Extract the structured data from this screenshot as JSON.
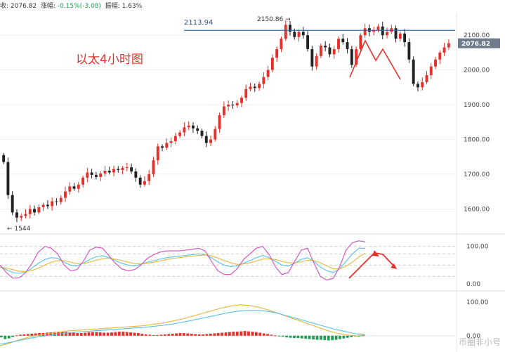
{
  "header": {
    "close_label": "收",
    "close_value": "2076.82",
    "change_label": "涨幅",
    "change_value": "-0.15%(-3.08)",
    "amp_label": "振幅",
    "amp_value": "1.63%"
  },
  "annotation_title": "以太4小时图",
  "watermark": "币圈非小号",
  "colors": {
    "up": "#e8302a",
    "down": "#222222",
    "resistance": "#2b6cb0",
    "arrow": "#e8302a",
    "kdj_k": "#56c2e6",
    "kdj_d": "#e6b63a",
    "kdj_j": "#d04cc0",
    "macd_pos": "#e8302a",
    "macd_neg": "#1f9d55",
    "dif": "#e6b63a",
    "dea": "#56c2e6"
  },
  "chart_data": [
    {
      "type": "candlestick",
      "y_ticks": [
        "2100.00",
        "2000.00",
        "1900.00",
        "1800.00",
        "1700.00",
        "1600.00"
      ],
      "ylim": [
        1530,
        2165
      ],
      "current_price": "2076.82",
      "resistance_level": 2113.94,
      "annotations": [
        {
          "text": "2113.94",
          "value": 2113.94
        },
        {
          "text": "2150.86",
          "value": 2150.86
        },
        {
          "text": "1544",
          "value": 1544
        }
      ],
      "ohlc_close": [
        1735,
        1640,
        1590,
        1575,
        1580,
        1585,
        1600,
        1590,
        1605,
        1612,
        1608,
        1622,
        1620,
        1632,
        1650,
        1665,
        1658,
        1670,
        1690,
        1705,
        1698,
        1692,
        1702,
        1710,
        1705,
        1715,
        1712,
        1718,
        1720,
        1708,
        1690,
        1670,
        1680,
        1700,
        1740,
        1780,
        1776,
        1790,
        1795,
        1810,
        1820,
        1835,
        1840,
        1832,
        1825,
        1810,
        1790,
        1800,
        1830,
        1870,
        1895,
        1900,
        1898,
        1905,
        1920,
        1945,
        1952,
        1948,
        1960,
        1980,
        2000,
        2035,
        2060,
        2090,
        2130,
        2110,
        2095,
        2110,
        2100,
        2060,
        2010,
        2040,
        2070,
        2065,
        2045,
        2060,
        2090,
        2080,
        2060,
        2015,
        2060,
        2100,
        2120,
        2110,
        2115,
        2125,
        2100,
        2110,
        2120,
        2090,
        2105,
        2080,
        2030,
        1960,
        1950,
        1965,
        1985,
        2010,
        2030,
        2050,
        2065,
        2077
      ]
    },
    {
      "type": "line",
      "name": "KDJ",
      "y_ticks": [
        "100.00",
        "0.00"
      ],
      "ylim": [
        -15,
        120
      ],
      "series": [
        {
          "key": "k",
          "values": [
            45,
            38,
            30,
            28,
            32,
            42,
            55,
            65,
            70,
            68,
            58,
            50,
            48,
            55,
            65,
            72,
            75,
            70,
            62,
            55,
            50,
            48,
            52,
            58,
            62,
            66,
            70,
            72,
            74,
            76,
            78,
            80,
            78,
            70,
            58,
            50,
            46,
            48,
            55,
            62,
            70,
            76,
            70,
            60,
            50,
            48,
            55,
            65,
            70,
            60,
            45,
            35,
            30,
            40,
            60,
            80,
            95,
            95
          ]
        },
        {
          "key": "d",
          "values": [
            45,
            42,
            38,
            34,
            33,
            36,
            42,
            50,
            58,
            62,
            62,
            58,
            54,
            54,
            58,
            63,
            67,
            68,
            66,
            62,
            58,
            54,
            53,
            55,
            58,
            61,
            65,
            68,
            70,
            72,
            74,
            76,
            77,
            75,
            69,
            62,
            56,
            52,
            53,
            56,
            61,
            66,
            67,
            65,
            60,
            56,
            56,
            59,
            63,
            62,
            56,
            48,
            40,
            40,
            47,
            58,
            72,
            82
          ]
        },
        {
          "key": "j",
          "values": [
            50,
            30,
            15,
            16,
            30,
            55,
            85,
            100,
            95,
            80,
            50,
            35,
            38,
            60,
            90,
            98,
            95,
            75,
            55,
            40,
            35,
            38,
            50,
            68,
            78,
            85,
            88,
            88,
            88,
            90,
            92,
            95,
            88,
            60,
            35,
            25,
            25,
            40,
            65,
            80,
            95,
            100,
            78,
            45,
            25,
            30,
            60,
            90,
            95,
            55,
            20,
            10,
            15,
            45,
            90,
            110,
            115,
            112
          ]
        }
      ]
    },
    {
      "type": "bar",
      "name": "MACD",
      "y_ticks": [
        "100.00",
        "0.00"
      ],
      "ylim": [
        -40,
        125
      ],
      "histogram": [
        -5,
        -10,
        -8,
        -4,
        1,
        3,
        4,
        5,
        6,
        7,
        8,
        8,
        9,
        10,
        11,
        12,
        12,
        11,
        10,
        9,
        8,
        8,
        9,
        10,
        11,
        11,
        10,
        9,
        9,
        10,
        11,
        12,
        12,
        11,
        10,
        9,
        8,
        6,
        4,
        3,
        2,
        2,
        3,
        4,
        5,
        6,
        7,
        8,
        8,
        7,
        6,
        5,
        4,
        4,
        5,
        6,
        7,
        8,
        9,
        10,
        11,
        12,
        12,
        13,
        14,
        13,
        12,
        11,
        9,
        7,
        5,
        3,
        1,
        -1,
        -3,
        -5,
        -6,
        -7,
        -7,
        -8,
        -9,
        -10,
        -11,
        -12,
        -12,
        -13,
        -14,
        -13,
        -12,
        -10,
        -8,
        -6,
        -4,
        -2,
        -1,
        1
      ],
      "series": [
        {
          "key": "dif",
          "values": [
            -30,
            -22,
            -12,
            -4,
            2,
            6,
            10,
            14,
            16,
            18,
            20,
            22,
            24,
            26,
            28,
            30,
            34,
            38,
            44,
            50,
            58,
            66,
            74,
            82,
            88,
            92,
            90,
            84,
            76,
            66,
            56,
            46,
            36,
            26,
            16,
            8,
            2,
            0,
            2
          ]
        },
        {
          "key": "dea",
          "values": [
            -25,
            -20,
            -14,
            -8,
            -3,
            1,
            5,
            8,
            11,
            13,
            15,
            17,
            19,
            21,
            23,
            25,
            28,
            31,
            35,
            40,
            46,
            52,
            58,
            64,
            70,
            74,
            76,
            75,
            72,
            66,
            58,
            50,
            42,
            34,
            26,
            18,
            12,
            6,
            3
          ]
        }
      ]
    }
  ]
}
